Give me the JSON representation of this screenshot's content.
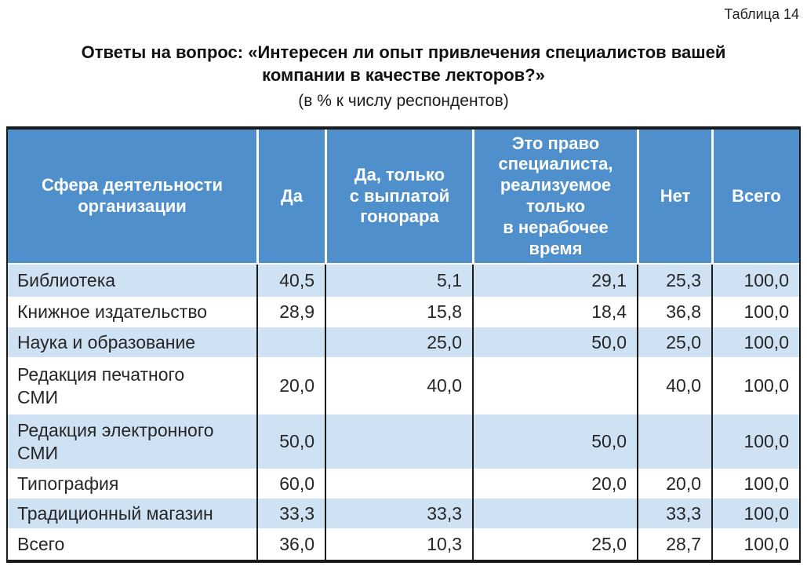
{
  "note": "Таблица 14",
  "title": "Ответы на вопрос: «Интересен ли опыт привлечения специалистов вашей\nкомпании в качестве лекторов?»",
  "subtitle": "(в % к числу респондентов)",
  "colors": {
    "header_bg": "#4f8fcc",
    "row_alt_bg": "#cfe2f4",
    "border": "#1a1a1a",
    "header_text": "#ffffff",
    "body_text": "#262626"
  },
  "table": {
    "columns": [
      "Сфера деятельности\nорганизации",
      "Да",
      "Да, только\nс выплатой\nгонорара",
      "Это право\nспециалиста,\nреализуемое\nтолько\nв нерабочее\nвремя",
      "Нет",
      "Всего"
    ],
    "rows": [
      {
        "label": "Библиотека",
        "values": [
          "40,5",
          "5,1",
          "29,1",
          "25,3",
          "100,0"
        ]
      },
      {
        "label": "Книжное издательство",
        "values": [
          "28,9",
          "15,8",
          "18,4",
          "36,8",
          "100,0"
        ]
      },
      {
        "label": "Наука и образование",
        "values": [
          "",
          "25,0",
          "50,0",
          "25,0",
          "100,0"
        ]
      },
      {
        "label": "Редакция печатного\nСМИ",
        "values": [
          "20,0",
          "40,0",
          "",
          "40,0",
          "100,0"
        ]
      },
      {
        "label": "Редакция электронного\nСМИ",
        "values": [
          "50,0",
          "",
          "50,0",
          "",
          "100,0"
        ]
      },
      {
        "label": "Типография",
        "values": [
          "60,0",
          "",
          "20,0",
          "20,0",
          "100,0"
        ]
      },
      {
        "label": "Традиционный магазин",
        "values": [
          "33,3",
          "33,3",
          "",
          "33,3",
          "100,0"
        ]
      },
      {
        "label": "Всего",
        "values": [
          "36,0",
          "10,3",
          "25,0",
          "28,7",
          "100,0"
        ]
      }
    ]
  }
}
